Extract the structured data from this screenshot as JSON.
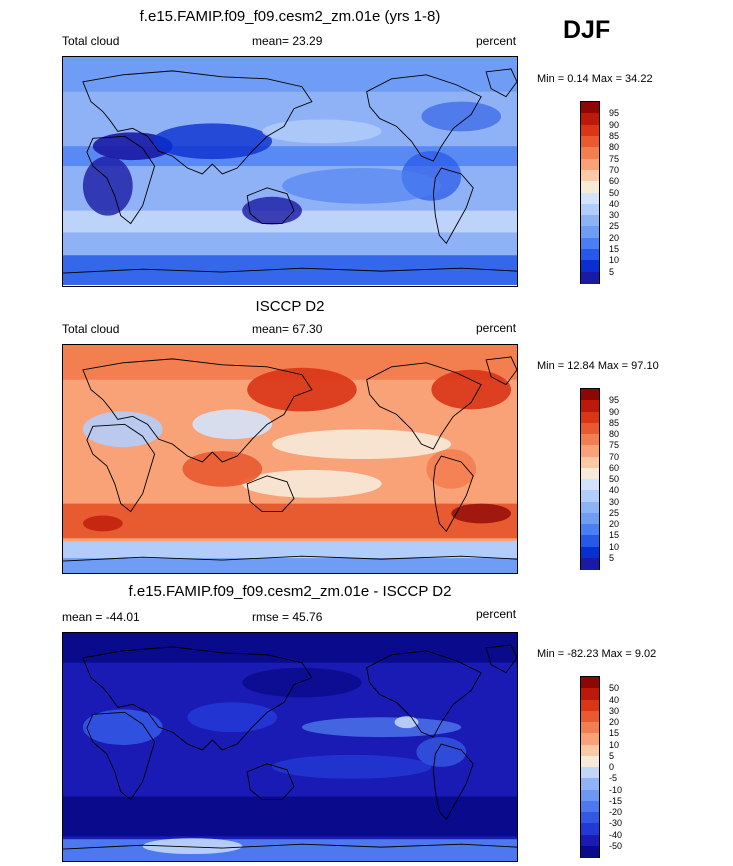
{
  "season": "DJF",
  "panels": [
    {
      "title": "f.e15.FAMIP.f09_f09.cesm2_zm.01e (yrs 1-8)",
      "left_label": "Total cloud",
      "center_label": "mean=  23.29",
      "right_label": "percent",
      "minmax": "Min =   0.14 Max =  34.22",
      "colorbar_labels": [
        "95",
        "90",
        "85",
        "80",
        "75",
        "70",
        "60",
        "50",
        "40",
        "30",
        "25",
        "20",
        "15",
        "10",
        "5"
      ],
      "colors": [
        "#1a1aa5",
        "#0a2fd1",
        "#2659e8",
        "#4b7ef2",
        "#6f9cf4",
        "#8db3f7",
        "#b3cdfa",
        "#d4e3fb",
        "#f6ead9",
        "#fcc9a4",
        "#f9a278",
        "#f37e50",
        "#e85a30",
        "#d93516",
        "#bb1a0a",
        "#8e0707"
      ],
      "map_style": "model"
    },
    {
      "title": "ISCCP D2",
      "left_label": "Total cloud",
      "center_label": "mean=  67.30",
      "right_label": "percent",
      "minmax": "Min =  12.84 Max =  97.10",
      "colorbar_labels": [
        "95",
        "90",
        "85",
        "80",
        "75",
        "70",
        "60",
        "50",
        "40",
        "30",
        "25",
        "20",
        "15",
        "10",
        "5"
      ],
      "colors": [
        "#1a1aa5",
        "#0a2fd1",
        "#2659e8",
        "#4b7ef2",
        "#6f9cf4",
        "#8db3f7",
        "#b3cdfa",
        "#d4e3fb",
        "#f6ead9",
        "#fcc9a4",
        "#f9a278",
        "#f37e50",
        "#e85a30",
        "#d93516",
        "#bb1a0a",
        "#8e0707"
      ],
      "map_style": "obs"
    },
    {
      "title": "f.e15.FAMIP.f09_f09.cesm2_zm.01e - ISCCP D2",
      "left_label": "mean = -44.01",
      "center_label": "rmse =  45.76",
      "right_label": "percent",
      "minmax": "Min = -82.23 Max =   9.02",
      "colorbar_labels": [
        "50",
        "40",
        "30",
        "20",
        "15",
        "10",
        "5",
        "0",
        "-5",
        "-10",
        "-15",
        "-20",
        "-30",
        "-40",
        "-50"
      ],
      "colors": [
        "#0a0a8c",
        "#1a1ab5",
        "#2339d6",
        "#3358e4",
        "#4e78ee",
        "#6d97f3",
        "#8fb3f6",
        "#c2d6f9",
        "#f6ead9",
        "#fcc9a4",
        "#f9a278",
        "#f37e50",
        "#e85a30",
        "#d93516",
        "#bb1a0a",
        "#8e0707"
      ],
      "map_style": "diff"
    }
  ]
}
